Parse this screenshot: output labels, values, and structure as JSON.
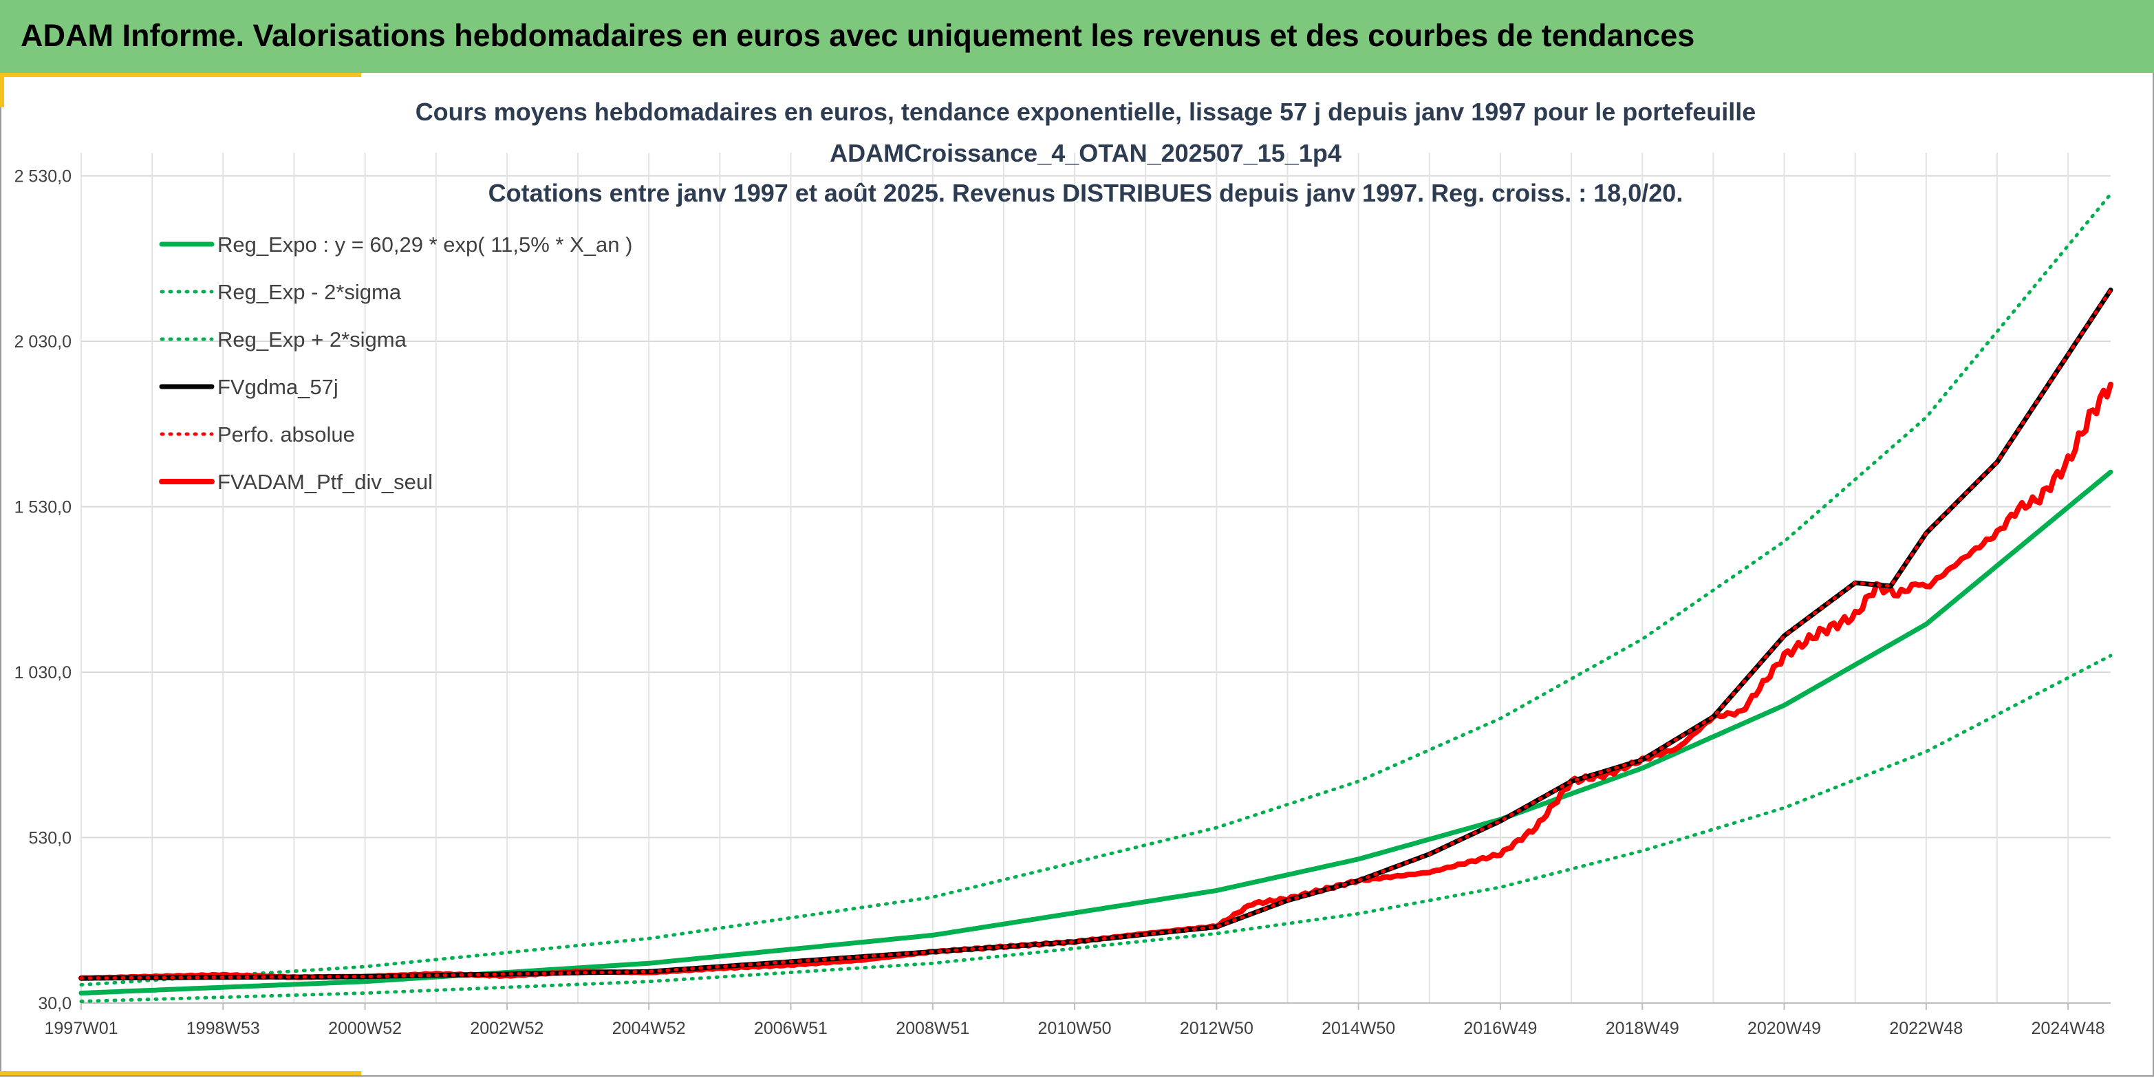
{
  "banner": {
    "title": "ADAM Informe. Valorisations hebdomadaires en euros avec uniquement les revenus et des courbes de tendances"
  },
  "colors": {
    "banner": "#7ec87e",
    "accent_corner": "#f5c21b",
    "trend": "#00b050",
    "smooth": "#000000",
    "price": "#ff0000"
  },
  "chart_data": {
    "type": "line",
    "title_lines": [
      "Cours moyens hebdomadaires en euros, tendance exponentielle, lissage 57 j depuis janv 1997 pour le portefeuille",
      "ADAMCroissance_4_OTAN_202507_15_1p4",
      "Cotations entre janv 1997 et août 2025. Revenus DISTRIBUES depuis janv 1997. Reg. croiss. : 18,0/20."
    ],
    "x_tick_labels": [
      "1997W01",
      "1998W53",
      "2000W52",
      "2002W52",
      "2004W52",
      "2006W51",
      "2008W51",
      "2010W50",
      "2012W50",
      "2014W50",
      "2016W49",
      "2018W49",
      "2020W49",
      "2022W48",
      "2024W48"
    ],
    "x_tick_years": [
      1997.0,
      1999.0,
      2001.0,
      2003.0,
      2005.0,
      2007.0,
      2009.0,
      2011.0,
      2013.0,
      2015.0,
      2017.0,
      2019.0,
      2021.0,
      2023.0,
      2025.0
    ],
    "xlim": [
      1997.0,
      2025.6
    ],
    "y_tick_labels": [
      "30,0",
      "530,0",
      "1 030,0",
      "1 530,0",
      "2 030,0",
      "2 530,0"
    ],
    "y_ticks": [
      30,
      530,
      1030,
      1530,
      2030,
      2530
    ],
    "ylim": [
      30,
      2600
    ],
    "grid": true,
    "legend_position": "top-left",
    "series": [
      {
        "name": "Reg_Expo : y = 60,29 * exp( 11,5% *  X_an )",
        "style": "solid",
        "color": "#00b050",
        "x": [
          1997,
          2001,
          2005,
          2009,
          2013,
          2015,
          2017,
          2019,
          2021,
          2023,
          2025.6
        ],
        "y": [
          60,
          95,
          150,
          235,
          370,
          465,
          585,
          740,
          930,
          1175,
          1635
        ]
      },
      {
        "name": "Reg_Exp - 2*sigma",
        "style": "dotted",
        "color": "#00b050",
        "x": [
          1997,
          2001,
          2005,
          2009,
          2013,
          2015,
          2017,
          2019,
          2021,
          2023,
          2025.6
        ],
        "y": [
          35,
          60,
          95,
          150,
          240,
          300,
          380,
          490,
          620,
          790,
          1080
        ]
      },
      {
        "name": "Reg_Exp + 2*sigma",
        "style": "dotted",
        "color": "#00b050",
        "x": [
          1997,
          2001,
          2005,
          2009,
          2013,
          2015,
          2017,
          2019,
          2021,
          2023,
          2025.6
        ],
        "y": [
          85,
          140,
          225,
          350,
          560,
          700,
          890,
          1130,
          1425,
          1800,
          2475
        ]
      },
      {
        "name": "FVgdma_57j",
        "style": "solid",
        "color": "#000000",
        "x": [
          1997,
          2001,
          2005,
          2009,
          2011,
          2013,
          2014,
          2015,
          2016,
          2017,
          2018,
          2019,
          2020,
          2021,
          2022,
          2022.5,
          2023,
          2024,
          2025.6
        ],
        "y": [
          105,
          110,
          125,
          185,
          215,
          260,
          340,
          400,
          480,
          580,
          700,
          765,
          895,
          1140,
          1300,
          1290,
          1450,
          1665,
          2185
        ]
      },
      {
        "name": "Perfo. absolue",
        "style": "dotted",
        "color": "#ff0000",
        "x": [
          1997,
          2001,
          2005,
          2009,
          2011,
          2013,
          2014,
          2015,
          2016,
          2017,
          2018,
          2019,
          2020,
          2021,
          2022,
          2022.5,
          2023,
          2024,
          2025.6
        ],
        "y": [
          105,
          110,
          125,
          185,
          215,
          260,
          340,
          400,
          480,
          580,
          700,
          765,
          895,
          1140,
          1300,
          1290,
          1450,
          1665,
          2185
        ]
      },
      {
        "name": "FVADAM_Ptf_div_seul",
        "style": "solid-thick",
        "color": "#ff0000",
        "x": [
          1997,
          1998,
          1999,
          2000,
          2001,
          2002,
          2003,
          2004,
          2005,
          2006,
          2007,
          2008,
          2009,
          2010,
          2011,
          2012,
          2013,
          2013.5,
          2014,
          2015,
          2016,
          2017,
          2017.5,
          2018,
          2018.5,
          2019,
          2019.5,
          2020,
          2020.4,
          2021,
          2021.5,
          2022,
          2022.3,
          2022.6,
          2022.9,
          2023,
          2023.5,
          2024,
          2024.3,
          2024.6,
          2025,
          2025.3,
          2025.6
        ],
        "y": [
          105,
          110,
          115,
          108,
          110,
          118,
          112,
          125,
          122,
          135,
          145,
          160,
          185,
          200,
          215,
          240,
          262,
          330,
          345,
          400,
          425,
          480,
          560,
          700,
          720,
          765,
          800,
          895,
          910,
          1080,
          1150,
          1200,
          1290,
          1265,
          1300,
          1285,
          1370,
          1450,
          1525,
          1555,
          1665,
          1800,
          1900
        ]
      }
    ]
  }
}
